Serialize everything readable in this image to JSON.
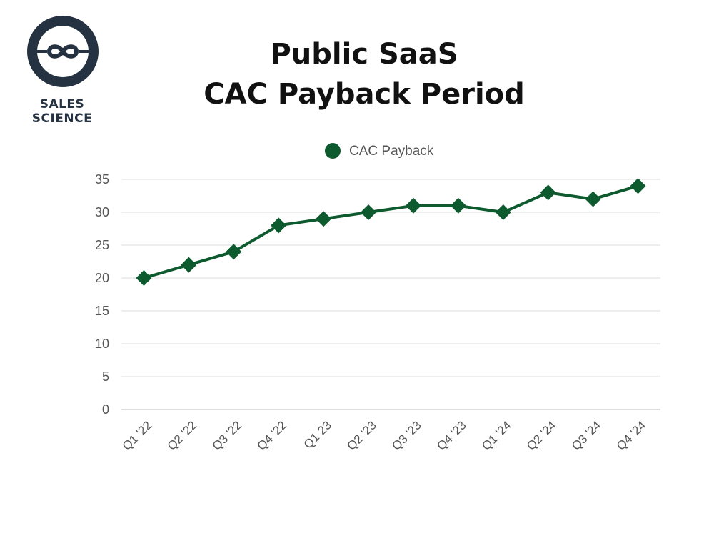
{
  "logo": {
    "text": "SALES SCIENCE",
    "icon": "infinity-link-icon",
    "color": "#243241"
  },
  "title_lines": [
    "Public SaaS",
    "CAC Payback Period"
  ],
  "chart_data": {
    "type": "line",
    "title": "Public SaaS CAC Payback Period",
    "categories": [
      "Q1 '22",
      "Q2 '22",
      "Q3 '22",
      "Q4 '22",
      "Q1 23",
      "Q2 '23",
      "Q3 '23",
      "Q4 '23",
      "Q1 '24",
      "Q2 '24",
      "Q3 '24",
      "Q4 '24"
    ],
    "series": [
      {
        "name": "CAC Payback",
        "values": [
          20,
          22,
          24,
          28,
          29,
          30,
          31,
          31,
          30,
          33,
          32,
          34
        ],
        "color": "#0d5a2e",
        "marker": "diamond"
      }
    ],
    "ylim": [
      0,
      35
    ],
    "yticks": [
      0,
      5,
      10,
      15,
      20,
      25,
      30,
      35
    ],
    "xlabel": "",
    "ylabel": "",
    "grid": true,
    "legend": "top-center"
  }
}
